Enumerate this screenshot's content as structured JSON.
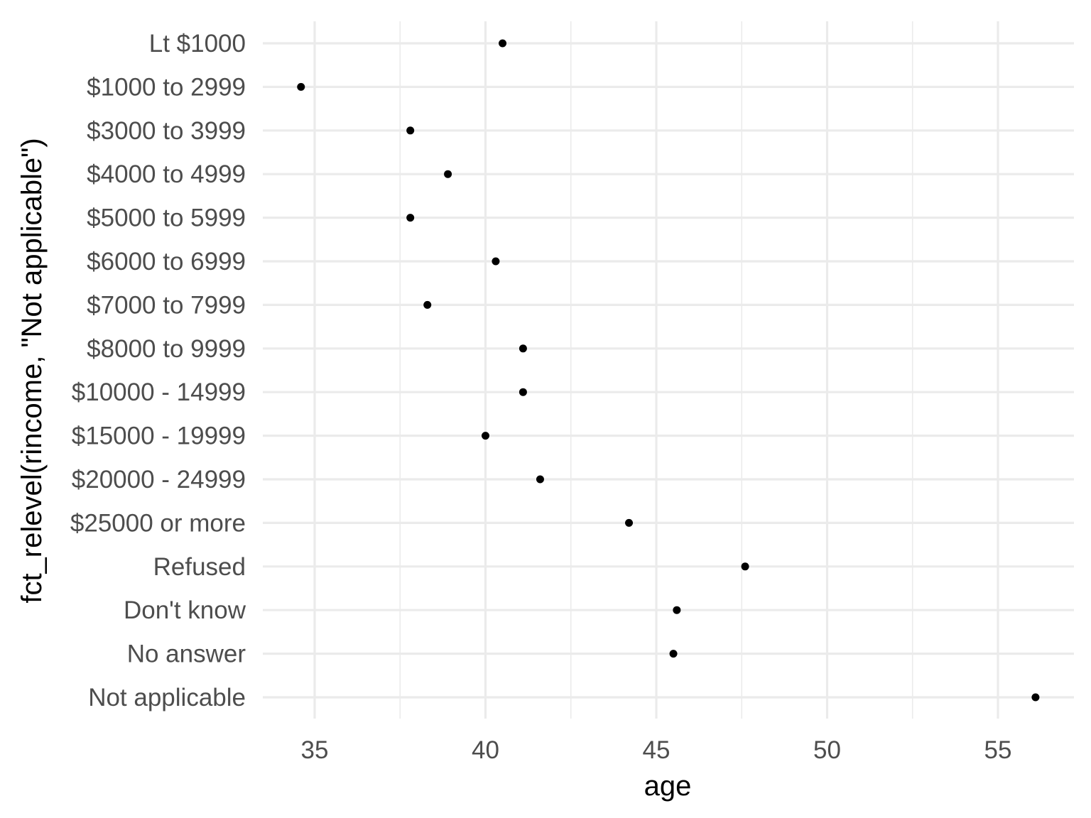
{
  "chart_data": {
    "type": "scatter",
    "title": "",
    "xlabel": "age",
    "ylabel": "fct_relevel(rincome, \"Not applicable\")",
    "xlim": [
      33.5,
      57.2
    ],
    "xticks": [
      35,
      40,
      45,
      50,
      55
    ],
    "grid": true,
    "legend": "none",
    "categories": [
      "Lt $1000",
      "$1000 to 2999",
      "$3000 to 3999",
      "$4000 to 4999",
      "$5000 to 5999",
      "$6000 to 6999",
      "$7000 to 7999",
      "$8000 to 9999",
      "$10000 - 14999",
      "$15000 - 19999",
      "$20000 - 24999",
      "$25000 or more",
      "Refused",
      "Don't know",
      "No answer",
      "Not applicable"
    ],
    "values": [
      40.5,
      34.6,
      37.8,
      38.9,
      37.8,
      40.3,
      38.3,
      41.1,
      41.1,
      40.0,
      41.6,
      44.2,
      47.6,
      45.6,
      45.5,
      56.1
    ],
    "point_color": "#000000",
    "grid_color": "#ebebeb"
  }
}
